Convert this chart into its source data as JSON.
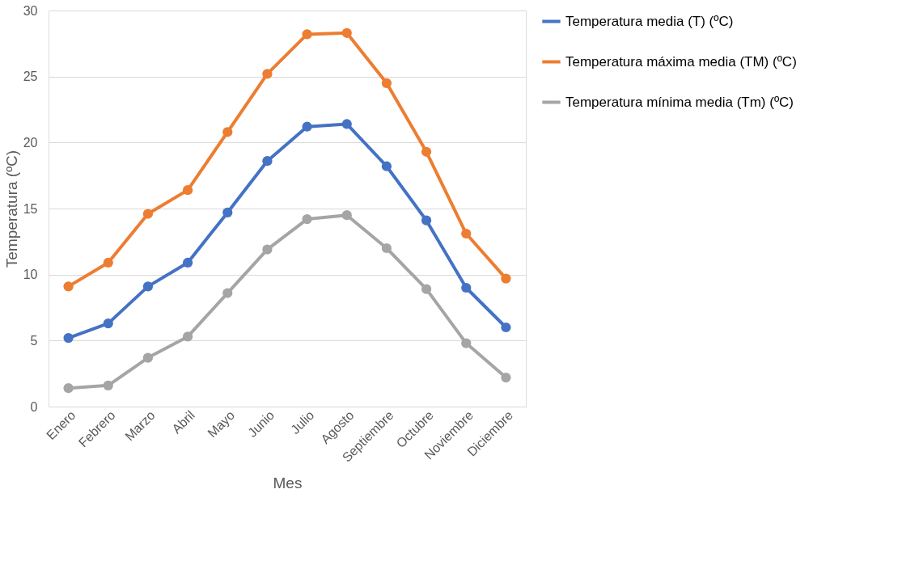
{
  "chart_data": {
    "type": "line",
    "xlabel": "Mes",
    "ylabel": "Temperatura (ºC)",
    "categories": [
      "Enero",
      "Febrero",
      "Marzo",
      "Abril",
      "Mayo",
      "Junio",
      "Julio",
      "Agosto",
      "Septiembre",
      "Octubre",
      "Noviembre",
      "Diciembre"
    ],
    "series": [
      {
        "name": "Temperatura media (T) (ºC)",
        "color": "#4472c4",
        "values": [
          5.2,
          6.3,
          9.1,
          10.9,
          14.7,
          18.6,
          21.2,
          21.4,
          18.2,
          14.1,
          9.0,
          6.0
        ]
      },
      {
        "name": "Temperatura máxima media (TM) (ºC)",
        "color": "#ed7d31",
        "values": [
          9.1,
          10.9,
          14.6,
          16.4,
          20.8,
          25.2,
          28.2,
          28.3,
          24.5,
          19.3,
          13.1,
          9.7
        ]
      },
      {
        "name": "Temperatura mínima media (Tm) (ºC)",
        "color": "#a5a5a5",
        "values": [
          1.4,
          1.6,
          3.7,
          5.3,
          8.6,
          11.9,
          14.2,
          14.5,
          12.0,
          8.9,
          4.8,
          2.2
        ]
      }
    ],
    "ylim": [
      0,
      30
    ],
    "yticks": [
      0,
      5,
      10,
      15,
      20,
      25,
      30
    ],
    "grid": "y",
    "legend": "right",
    "marker": "circle",
    "line_style": "solid"
  }
}
